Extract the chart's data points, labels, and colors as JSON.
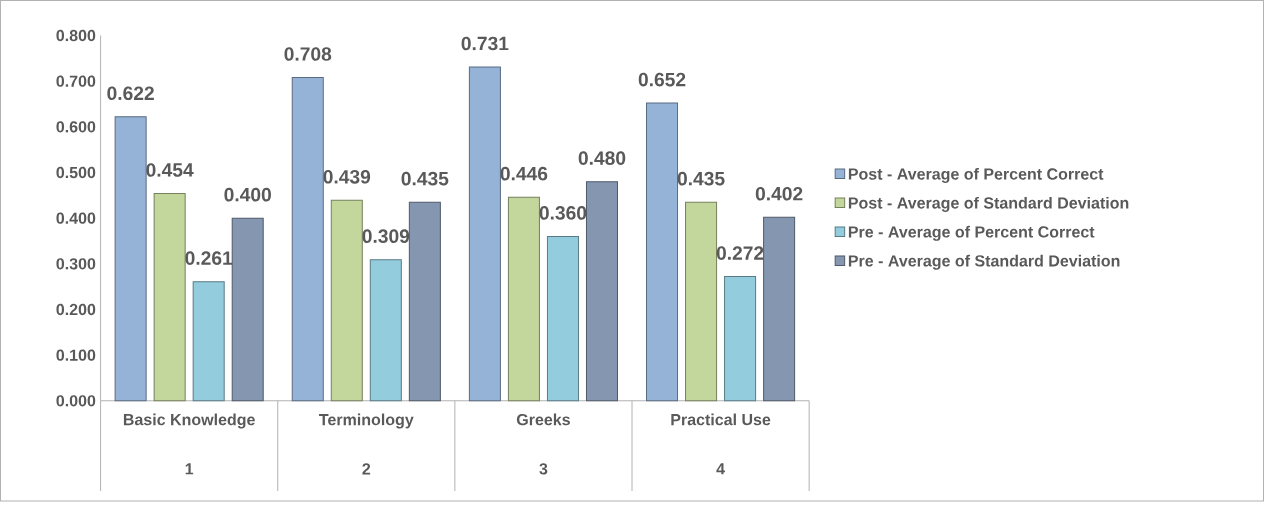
{
  "chart_data": {
    "type": "bar",
    "categories": [
      "Basic Knowledge",
      "Terminology",
      "Greeks",
      "Practical Use"
    ],
    "annotations": [
      "1",
      "2",
      "3",
      "4"
    ],
    "series": [
      {
        "name": "Post - Average of Percent Correct",
        "color": "#95b3d7",
        "values": [
          0.622,
          0.708,
          0.731,
          0.652
        ],
        "value_labels": [
          "0.622",
          "0.708",
          "0.731",
          "0.652"
        ]
      },
      {
        "name": "Post - Average of Standard Deviation",
        "color": "#c3d69b",
        "values": [
          0.454,
          0.439,
          0.446,
          0.435
        ],
        "value_labels": [
          "0.454",
          "0.439",
          "0.446",
          "0.435"
        ]
      },
      {
        "name": "Pre - Average of Percent Correct",
        "color": "#93cddd",
        "values": [
          0.261,
          0.309,
          0.36,
          0.272
        ],
        "value_labels": [
          "0.261",
          "0.309",
          "0.360",
          "0.272"
        ]
      },
      {
        "name": "Pre - Average of Standard Deviation",
        "color": "#8496b0",
        "values": [
          0.4,
          0.435,
          0.48,
          0.402
        ],
        "value_labels": [
          "0.400",
          "0.435",
          "0.480",
          "0.402"
        ]
      }
    ],
    "ylim": [
      0,
      0.8
    ],
    "yticks": [
      {
        "value": 0,
        "label": "0.000"
      },
      {
        "value": 0.1,
        "label": "0.100"
      },
      {
        "value": 0.2,
        "label": "0.200"
      },
      {
        "value": 0.3,
        "label": "0.300"
      },
      {
        "value": 0.4,
        "label": "0.400"
      },
      {
        "value": 0.5,
        "label": "0.500"
      },
      {
        "value": 0.6,
        "label": "0.600"
      },
      {
        "value": 0.7,
        "label": "0.700"
      },
      {
        "value": 0.8,
        "label": "0.800"
      }
    ],
    "grid": false,
    "legend": "right"
  }
}
